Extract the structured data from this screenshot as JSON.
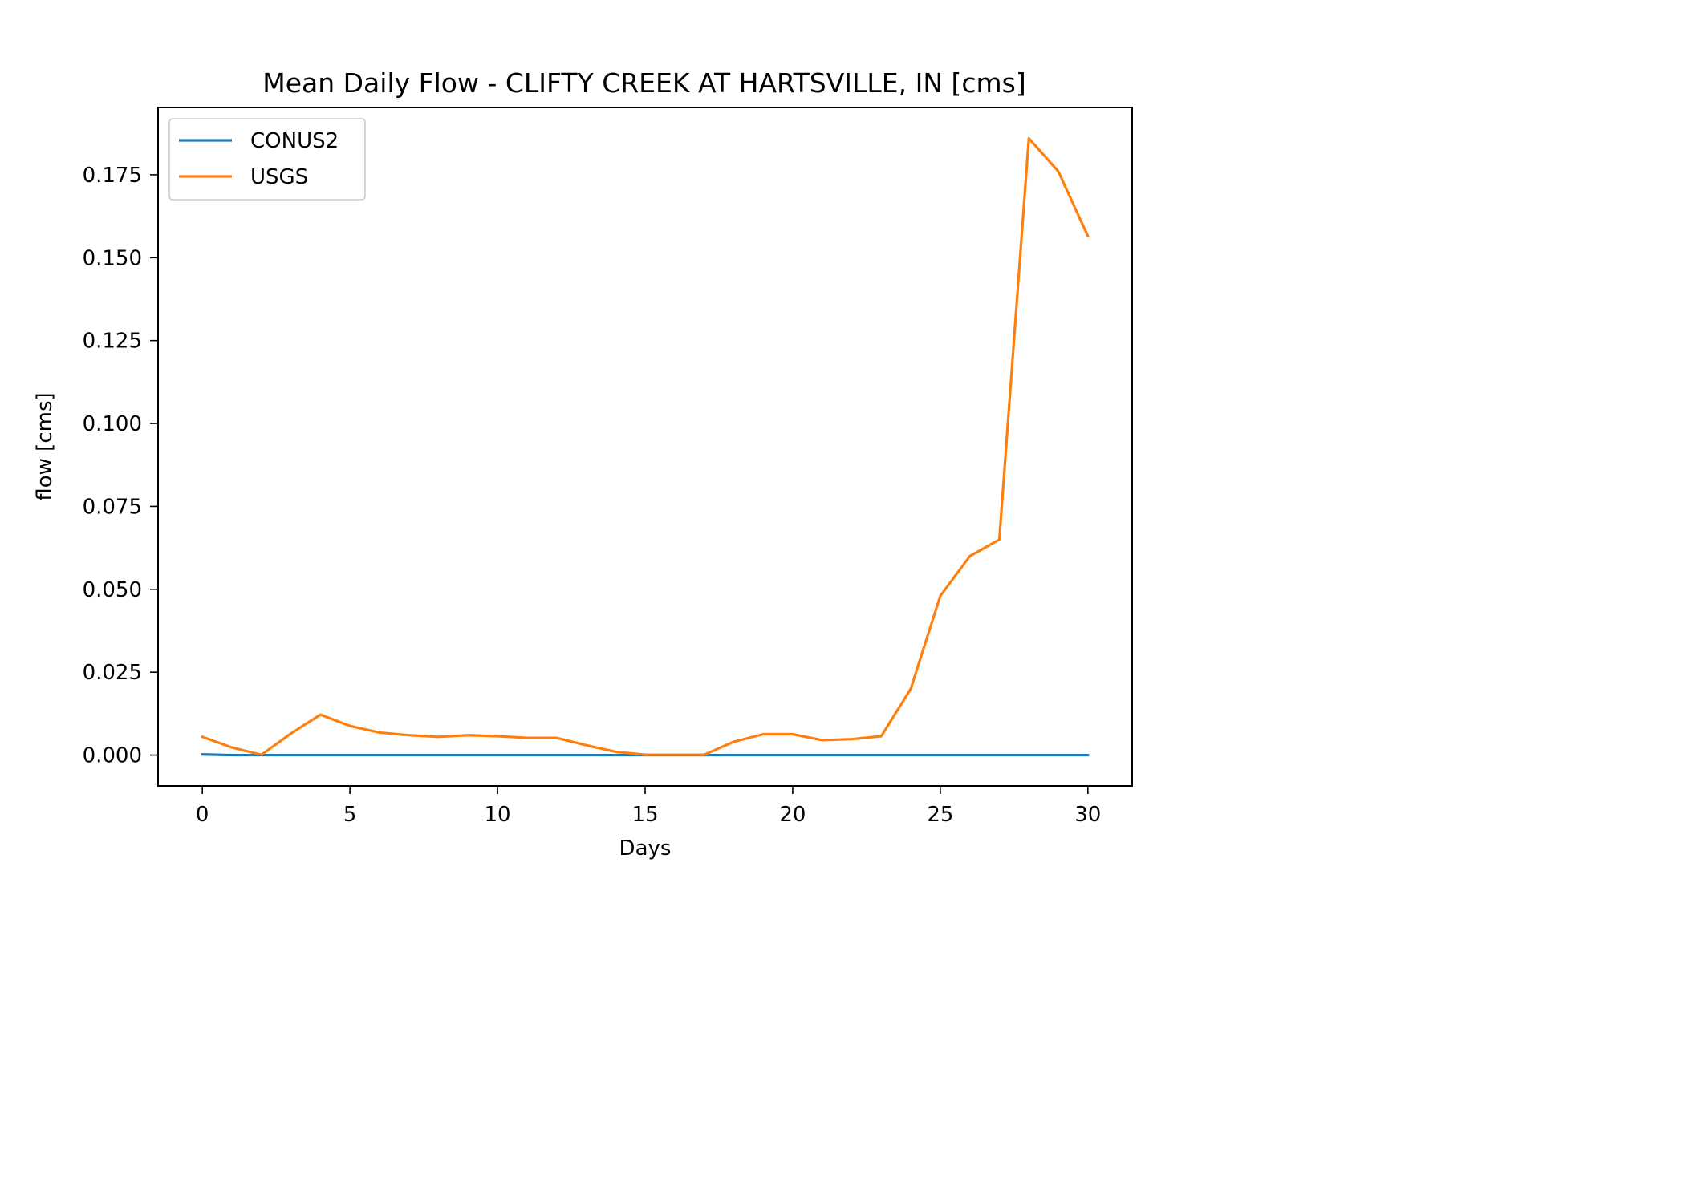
{
  "chart_data": {
    "type": "line",
    "title": "Mean Daily Flow - CLIFTY CREEK AT HARTSVILLE, IN [cms]",
    "xlabel": "Days",
    "ylabel": "flow [cms]",
    "xlim": [
      -1.5,
      31.5
    ],
    "ylim": [
      -0.0093,
      0.1953
    ],
    "xticks": [
      0,
      5,
      10,
      15,
      20,
      25,
      30
    ],
    "xtick_labels": [
      "0",
      "5",
      "10",
      "15",
      "20",
      "25",
      "30"
    ],
    "yticks": [
      0.0,
      0.025,
      0.05,
      0.075,
      0.1,
      0.125,
      0.15,
      0.175
    ],
    "ytick_labels": [
      "0.000",
      "0.025",
      "0.050",
      "0.075",
      "0.100",
      "0.125",
      "0.150",
      "0.175"
    ],
    "grid": false,
    "legend_position": "top-left",
    "x": [
      0,
      1,
      2,
      3,
      4,
      5,
      6,
      7,
      8,
      9,
      10,
      11,
      12,
      13,
      14,
      15,
      16,
      17,
      18,
      19,
      20,
      21,
      22,
      23,
      24,
      25,
      26,
      27,
      28,
      29,
      30
    ],
    "series": [
      {
        "name": "CONUS2",
        "color": "#1f77b4",
        "values": [
          0.0002,
          0.0,
          0.0,
          0.0,
          0.0,
          0.0,
          0.0,
          0.0,
          0.0,
          0.0,
          0.0,
          0.0,
          0.0,
          0.0,
          0.0,
          0.0,
          0.0,
          0.0,
          0.0,
          0.0,
          0.0,
          0.0,
          0.0,
          0.0,
          0.0,
          0.0,
          0.0,
          0.0,
          0.0,
          0.0,
          0.0
        ]
      },
      {
        "name": "USGS",
        "color": "#ff7f0e",
        "values": [
          0.0055,
          0.0023,
          0.0001,
          0.0065,
          0.0122,
          0.0088,
          0.0068,
          0.006,
          0.0055,
          0.006,
          0.0057,
          0.0052,
          0.0052,
          0.003,
          0.001,
          0.0001,
          0.0001,
          0.0001,
          0.004,
          0.0063,
          0.0063,
          0.0045,
          0.0048,
          0.0057,
          0.02,
          0.048,
          0.06,
          0.065,
          0.186,
          0.176,
          0.1565
        ]
      }
    ]
  }
}
